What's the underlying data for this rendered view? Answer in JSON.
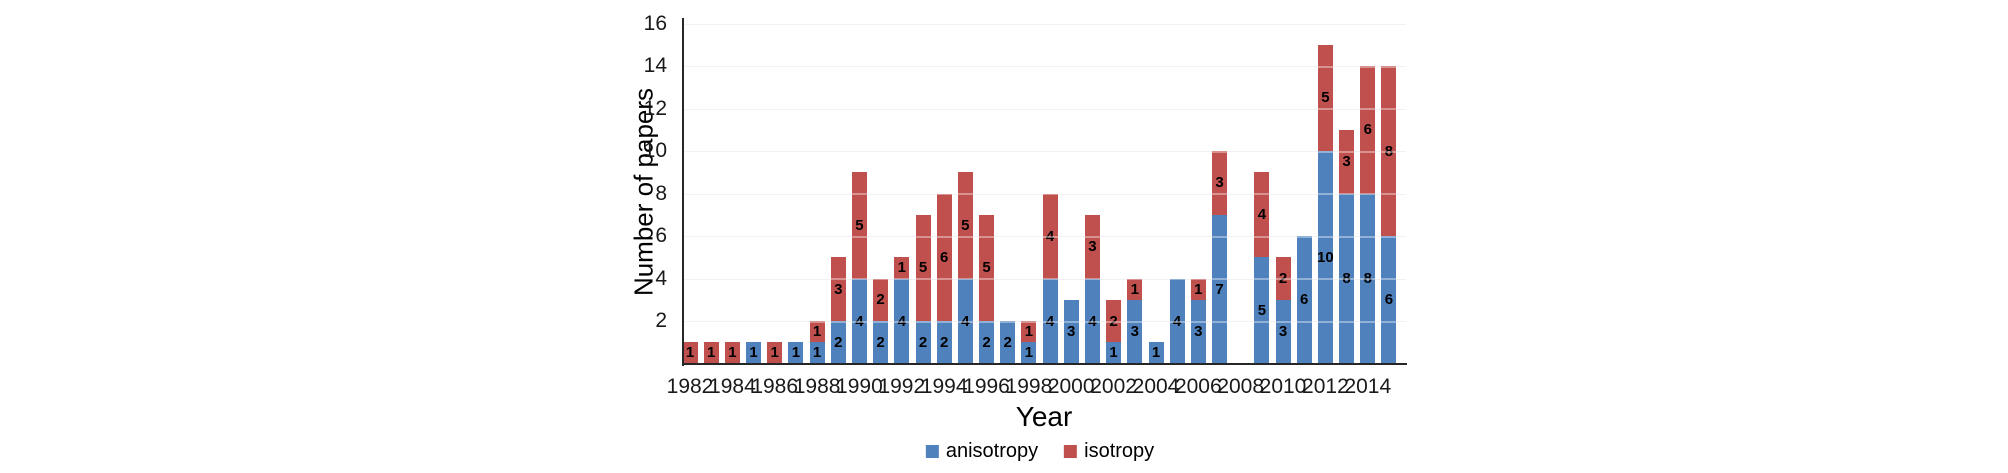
{
  "page": {
    "background_color": "#ffffff"
  },
  "chart_data": {
    "type": "bar",
    "stacked": true,
    "title": "",
    "xlabel": "Year",
    "ylabel": "Number of papers",
    "ylim": [
      0,
      16
    ],
    "ytick_step": 2,
    "ytick_labels": [
      "2",
      "4",
      "6",
      "8",
      "10",
      "12",
      "14",
      "16"
    ],
    "grid": "horizontal-light",
    "legend_position": "bottom",
    "categories": [
      "1982",
      "1983",
      "1984",
      "1985",
      "1986",
      "1987",
      "1988",
      "1989",
      "1990",
      "1991",
      "1992",
      "1993",
      "1994",
      "1995",
      "1996",
      "1997",
      "1998",
      "1999",
      "2000",
      "2001",
      "2002",
      "2003",
      "2004",
      "2005",
      "2006",
      "2007",
      "2008",
      "2009",
      "2010",
      "2011",
      "2012",
      "2013",
      "2014",
      "2015"
    ],
    "xtick_labels": [
      "1982",
      "1984",
      "1986",
      "1988",
      "1990",
      "1992",
      "1994",
      "1996",
      "1998",
      "2000",
      "2002",
      "2004",
      "2006",
      "2008",
      "2010",
      "2012",
      "2014"
    ],
    "series": [
      {
        "name": "anisotropy",
        "color": "#4f81bd",
        "values": [
          0,
          0,
          0,
          1,
          0,
          1,
          1,
          2,
          4,
          2,
          4,
          2,
          2,
          4,
          2,
          2,
          1,
          4,
          3,
          4,
          1,
          3,
          1,
          4,
          3,
          7,
          0,
          5,
          3,
          6,
          10,
          8,
          8,
          6
        ]
      },
      {
        "name": "isotropy",
        "color": "#c0504d",
        "values": [
          1,
          1,
          1,
          0,
          1,
          0,
          1,
          3,
          5,
          2,
          1,
          5,
          6,
          5,
          5,
          0,
          1,
          4,
          0,
          3,
          2,
          1,
          0,
          0,
          1,
          3,
          0,
          4,
          2,
          0,
          5,
          3,
          6,
          8
        ]
      }
    ],
    "segment_labels_visible": true,
    "axis_color": "#262626",
    "gridline_color": "#e9e9e9",
    "text_color": "#000000"
  }
}
